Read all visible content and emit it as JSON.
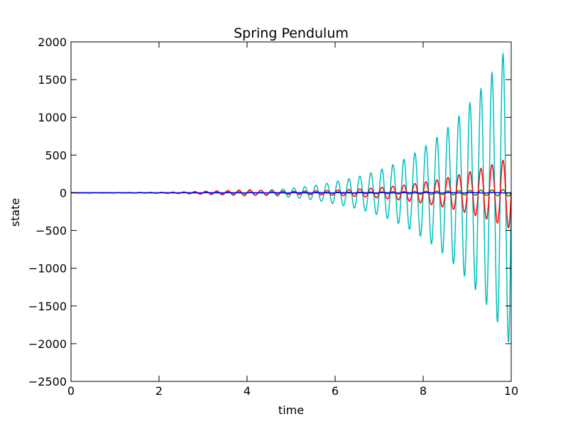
{
  "chart_data": {
    "type": "line",
    "title": "Spring Pendulum",
    "xlabel": "time",
    "ylabel": "state",
    "xlim": [
      0,
      10
    ],
    "ylim": [
      -2500,
      2000
    ],
    "xticks": [
      0,
      2,
      4,
      6,
      8,
      10
    ],
    "yticks": [
      2000,
      1500,
      1000,
      500,
      0,
      -500,
      -1000,
      -1500,
      -2000,
      -2500
    ],
    "xtick_labels": [
      "0",
      "2",
      "4",
      "6",
      "8",
      "10"
    ],
    "ytick_labels": [
      "2000",
      "1500",
      "1000",
      "500",
      "0",
      "−500",
      "−1000",
      "−1500",
      "−2000",
      "−2500"
    ],
    "grid": false,
    "series": [
      {
        "color": "#00bfbf",
        "kind": "growing_oscillation",
        "frequency": 4.0,
        "envelope": {
          "t": [
            0,
            2,
            3,
            4,
            5,
            6,
            7,
            8,
            9,
            10
          ],
          "amp": [
            2,
            5,
            12,
            25,
            60,
            150,
            300,
            600,
            1150,
            2050
          ]
        }
      },
      {
        "color": "#ff0000",
        "kind": "growing_oscillation",
        "frequency": 4.0,
        "envelope": {
          "t": [
            0,
            2,
            3,
            4,
            5,
            6,
            7,
            8,
            9,
            10
          ],
          "amp": [
            1,
            6,
            20,
            40,
            20,
            35,
            70,
            140,
            270,
            480
          ]
        }
      },
      {
        "color": "#008000",
        "kind": "growing_oscillation",
        "frequency": 4.0,
        "envelope": {
          "t": [
            0,
            5,
            8,
            10
          ],
          "amp": [
            1,
            5,
            20,
            45
          ]
        }
      },
      {
        "color": "#0000ff",
        "kind": "growing_oscillation",
        "frequency": 2.0,
        "envelope": {
          "t": [
            0,
            10
          ],
          "amp": [
            1,
            3
          ]
        }
      }
    ]
  }
}
